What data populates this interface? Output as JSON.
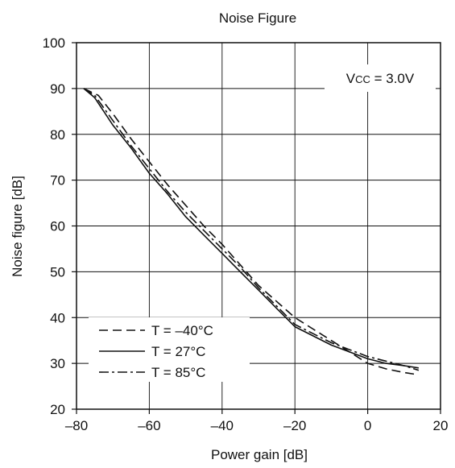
{
  "chart_data": {
    "type": "line",
    "title": "Noise Figure",
    "xlabel": "Power gain [dB]",
    "ylabel": "Noise figure [dB]",
    "xlim": [
      -80,
      20
    ],
    "ylim": [
      20,
      100
    ],
    "xticks": [
      -80,
      -60,
      -40,
      -20,
      0,
      20
    ],
    "xtick_labels": [
      "–80",
      "–60",
      "–40",
      "–20",
      "0",
      "20"
    ],
    "yticks": [
      20,
      30,
      40,
      50,
      60,
      70,
      80,
      90,
      100
    ],
    "ytick_labels": [
      "20",
      "30",
      "40",
      "50",
      "60",
      "70",
      "80",
      "90",
      "100"
    ],
    "grid": true,
    "annotation": {
      "base": "V",
      "sub": "CC",
      "rest": " = 3.0V"
    },
    "legend_position": "bottom-left",
    "series": [
      {
        "name": "T = –40°C",
        "dash": "dashed",
        "x": [
          -78,
          -74,
          -70,
          -65,
          -60,
          -55,
          -50,
          -45,
          -40,
          -35,
          -30,
          -25,
          -20,
          -15,
          -10,
          -5,
          0,
          5,
          10,
          14
        ],
        "y": [
          90,
          88.5,
          84.5,
          79,
          74,
          69,
          64.5,
          60,
          56,
          51.5,
          47,
          43.5,
          40,
          37.5,
          35,
          32.5,
          30,
          28.8,
          28,
          27.5
        ]
      },
      {
        "name": "T = 27°C",
        "dash": "solid",
        "x": [
          -78,
          -75,
          -70,
          -65,
          -60,
          -55,
          -50,
          -45,
          -40,
          -35,
          -30,
          -25,
          -20,
          -15,
          -10,
          -5,
          0,
          5,
          10,
          14
        ],
        "y": [
          90,
          88,
          82,
          77,
          71.5,
          67,
          62,
          58,
          54,
          50,
          46,
          42,
          38,
          36,
          34,
          32.5,
          31,
          30,
          29.5,
          29
        ]
      },
      {
        "name": "T = 85°C",
        "dash": "dashdot",
        "x": [
          -78,
          -75,
          -70,
          -65,
          -60,
          -55,
          -50,
          -45,
          -40,
          -35,
          -30,
          -25,
          -20,
          -15,
          -10,
          -5,
          0,
          5,
          10,
          14
        ],
        "y": [
          90,
          88.5,
          83,
          77.5,
          72.5,
          67.5,
          63,
          59,
          55,
          51,
          46.5,
          42.5,
          38.5,
          36.5,
          34.5,
          33,
          31.5,
          30.5,
          29.5,
          28.5
        ]
      }
    ]
  }
}
